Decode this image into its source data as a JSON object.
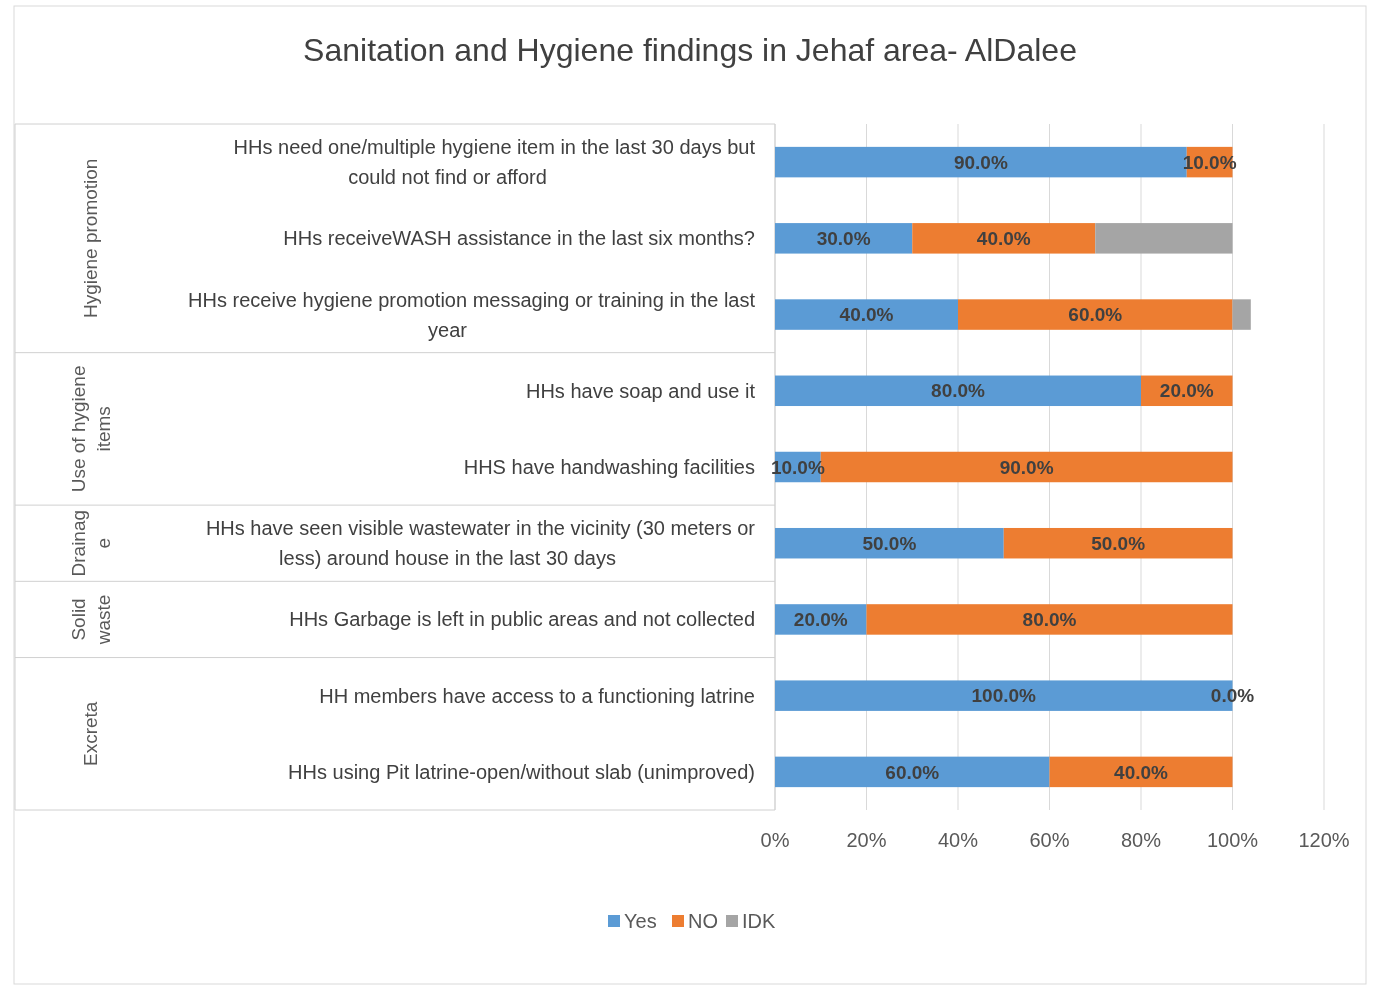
{
  "chart_data": {
    "type": "bar",
    "orientation": "horizontal",
    "stacked": true,
    "title": "Sanitation and Hygiene findings in Jehaf area- AlDalee",
    "categories": [
      "HHs need one/multiple hygiene item  in the last 30 days but could not find or afford",
      "HHs receiveWASH assistance in the last six months?",
      "HHs receive hygiene promotion messaging or training in the last year",
      "HHs have soap  and use it",
      "HHS have handwashing facilities",
      "HHs have seen visible wastewater in the vicinity (30 meters or less) around house in the last 30 days",
      "HHs Garbage is left in public areas and not collected",
      "HH members have access to a functioning latrine",
      "HHs using Pit latrine-open/without slab (unimproved)"
    ],
    "series": [
      {
        "name": "Yes",
        "color": "#5b9bd5",
        "values": [
          90,
          30,
          40,
          80,
          10,
          50,
          20,
          100,
          60
        ],
        "value_labels": [
          "90.0%",
          "30.0%",
          "40.0%",
          "80.0%",
          "10.0%",
          "50.0%",
          "20.0%",
          "100.0%",
          "60.0%"
        ]
      },
      {
        "name": "NO",
        "color": "#ed7d31",
        "values": [
          10,
          40,
          60,
          20,
          90,
          50,
          80,
          0,
          40
        ],
        "value_labels": [
          "10.0%",
          "40.0%",
          "60.0%",
          "20.0%",
          "90.0%",
          "50.0%",
          "80.0%",
          "0.0%",
          "40.0%"
        ]
      },
      {
        "name": "IDK",
        "color": "#a5a5a5",
        "values": [
          null,
          30,
          4,
          null,
          null,
          null,
          null,
          null,
          null
        ]
      }
    ],
    "xlim": [
      0,
      120
    ],
    "xticks": [
      {
        "value": 0,
        "label": "0%"
      },
      {
        "value": 20,
        "label": "20%"
      },
      {
        "value": 40,
        "label": "40%"
      },
      {
        "value": 60,
        "label": "60%"
      },
      {
        "value": 80,
        "label": "80%"
      },
      {
        "value": 100,
        "label": "100%"
      },
      {
        "value": 120,
        "label": "120%"
      }
    ],
    "grid": "x",
    "legend": "bottom",
    "annotations": [
      "Hygiene promotion",
      "Use of hygiene items",
      "Drainage",
      "Solid waste",
      "Excreta"
    ]
  }
}
